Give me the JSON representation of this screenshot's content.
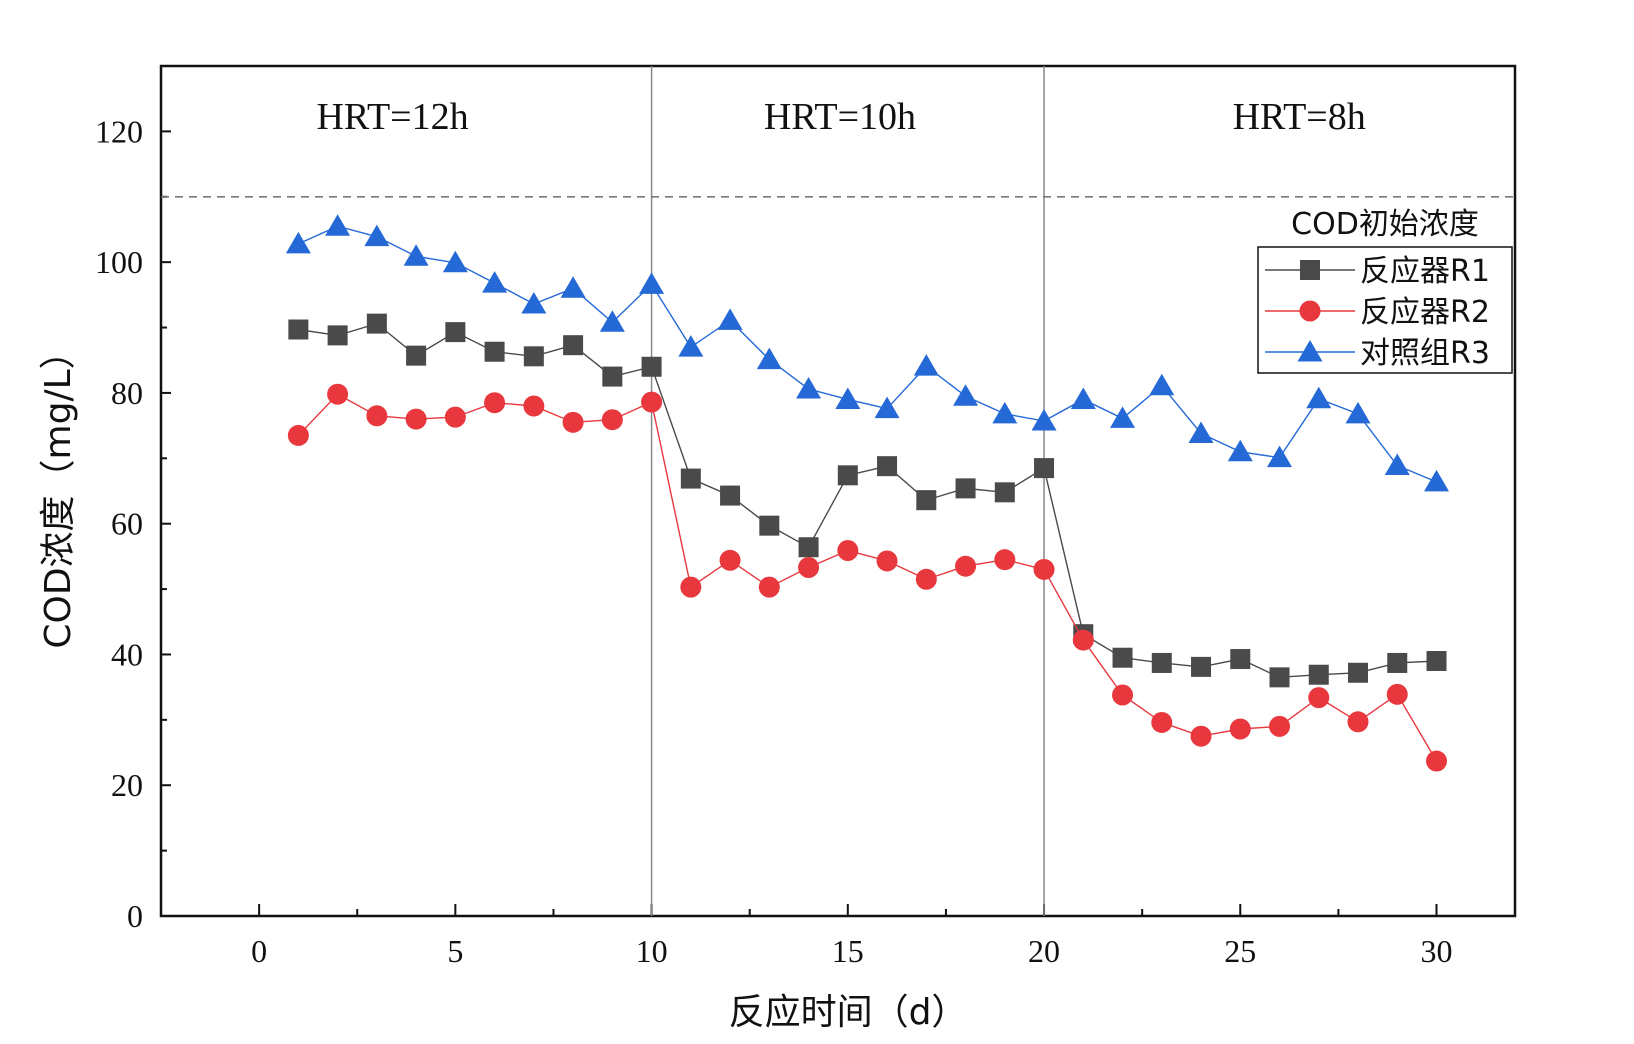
{
  "chart_data": {
    "type": "line",
    "title": "",
    "xlabel": "反应时间（d）",
    "ylabel": "COD浓度（mg/L）",
    "xlim": [
      -2.5,
      32
    ],
    "ylim": [
      0,
      130
    ],
    "xticks": [
      0,
      5,
      10,
      15,
      20,
      25,
      30
    ],
    "yticks": [
      0,
      20,
      40,
      60,
      80,
      100,
      120
    ],
    "x": [
      1,
      2,
      3,
      4,
      5,
      6,
      7,
      8,
      9,
      10,
      11,
      12,
      13,
      14,
      15,
      16,
      17,
      18,
      19,
      20,
      21,
      22,
      23,
      24,
      25,
      26,
      27,
      28,
      29,
      30
    ],
    "series": [
      {
        "name": "反应器R1",
        "marker": "square",
        "color": "#4a4a4a",
        "values": [
          89.7,
          88.8,
          90.6,
          85.7,
          89.3,
          86.3,
          85.6,
          87.3,
          82.5,
          84.0,
          66.9,
          64.3,
          59.7,
          56.4,
          67.4,
          68.8,
          63.6,
          65.4,
          64.8,
          68.5,
          43.1,
          39.5,
          38.7,
          38.1,
          39.3,
          36.5,
          36.9,
          37.2,
          38.7,
          39.0
        ]
      },
      {
        "name": "反应器R2",
        "marker": "circle",
        "color": "#e8383d",
        "values": [
          73.5,
          79.8,
          76.5,
          76.0,
          76.3,
          78.5,
          78.0,
          75.5,
          75.9,
          78.6,
          50.3,
          54.4,
          50.3,
          53.3,
          55.9,
          54.3,
          51.5,
          53.5,
          54.5,
          53.0,
          42.2,
          33.8,
          29.6,
          27.5,
          28.6,
          29.0,
          33.4,
          29.7,
          33.9,
          23.7
        ]
      },
      {
        "name": "对照组R3",
        "marker": "triangle",
        "color": "#2569d6",
        "values": [
          102.8,
          105.5,
          103.9,
          100.9,
          99.9,
          96.8,
          93.6,
          96.0,
          90.8,
          96.6,
          87.0,
          91.1,
          85.1,
          80.6,
          79.0,
          77.6,
          84.1,
          79.5,
          76.8,
          75.7,
          79.0,
          76.1,
          81.1,
          73.8,
          71.0,
          70.1,
          79.1,
          76.8,
          68.9,
          66.4
        ]
      }
    ],
    "reference_line": {
      "y": 110,
      "style": "dashed",
      "label": "COD初始浓度"
    },
    "dividers": [
      10,
      20
    ],
    "periods": [
      {
        "label": "HRT=12h",
        "x": 3.4
      },
      {
        "label": "HRT=10h",
        "x": 14.8
      },
      {
        "label": "HRT=8h",
        "x": 26.5
      }
    ],
    "legend_position": "top-right"
  }
}
